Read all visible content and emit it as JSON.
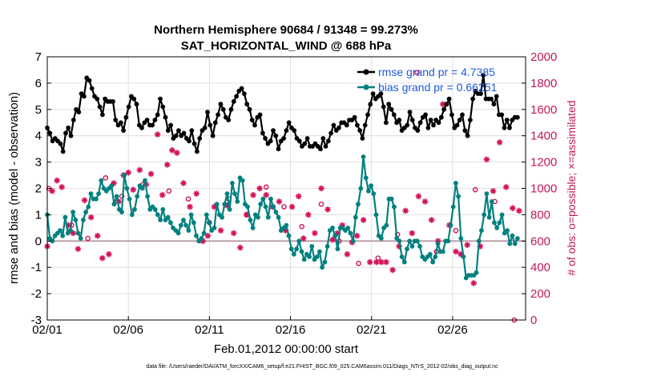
{
  "chart_data": {
    "type": "line",
    "title": "Northern Hemisphere 90684 / 91348 = 99.273%",
    "subtitle": "SAT_HORIZONTAL_WIND @ 688 hPa",
    "xlabel": "Feb.01,2012 00:00:00 start",
    "ylabel": "rmse and bias (model - observation)",
    "y2label": "# of obs: o=possible; ×=assimilated",
    "ylim": [
      -3,
      7
    ],
    "y2lim": [
      0,
      2000
    ],
    "xlim": [
      0,
      29.5
    ],
    "x_ticks": [
      0,
      5,
      10,
      15,
      20,
      25
    ],
    "x_tick_labels": [
      "02/01",
      "02/06",
      "02/11",
      "02/16",
      "02/21",
      "02/26"
    ],
    "y_ticks": [
      -3,
      -2,
      -1,
      0,
      1,
      2,
      3,
      4,
      5,
      6,
      7
    ],
    "y2_ticks": [
      0,
      200,
      400,
      600,
      800,
      1000,
      1200,
      1400,
      1600,
      1800,
      2000
    ],
    "grid": true,
    "legend_position": "top-right",
    "footnote": "data file: /Users/raeder/DAI/ATM_forcXX/CAM6_setup/f.e21.FHIST_BGC.f09_025.CAM6assim.011/Diags_NTrS_2012-02/obs_diag_output.nc",
    "colors": {
      "rmse": "#000000",
      "bias": "#00807f",
      "obs": "#d41159",
      "zero_line": "#b89aa5",
      "legend_text": "#1e5adc",
      "right_axis": "#c2185b"
    },
    "series": [
      {
        "name": "rmse grand pr = 4.7385",
        "values": [
          4.3,
          4.1,
          3.8,
          3.9,
          3.8,
          3.7,
          3.4,
          4.1,
          4.3,
          4.0,
          4.6,
          5.0,
          4.9,
          5.6,
          5.5,
          6.2,
          6.1,
          5.8,
          5.5,
          5.4,
          5.1,
          4.8,
          5.4,
          5.3,
          5.3,
          5.3,
          4.6,
          4.4,
          4.5,
          4.2,
          4.7,
          5.1,
          5.5,
          5.4,
          5.2,
          4.4,
          4.3,
          4.5,
          4.6,
          4.4,
          4.4,
          4.6,
          4.8,
          5.4,
          5.1,
          4.7,
          4.2,
          4.4,
          3.9,
          4.0,
          4.2,
          4.0,
          4.1,
          3.9,
          3.8,
          4.2,
          3.7,
          3.4,
          3.9,
          4.2,
          4.3,
          4.9,
          4.4,
          4.0,
          4.5,
          4.8,
          5.2,
          5.0,
          4.7,
          4.6,
          5.0,
          5.3,
          5.5,
          5.7,
          5.8,
          5.6,
          5.2,
          5.0,
          4.6,
          4.4,
          4.7,
          4.8,
          4.1,
          3.9,
          3.7,
          3.8,
          4.2,
          4.0,
          3.5,
          3.8,
          3.9,
          4.2,
          4.5,
          4.3,
          4.2,
          3.9,
          3.8,
          3.6,
          3.7,
          3.9,
          3.6,
          3.6,
          3.7,
          3.6,
          3.5,
          3.9,
          3.6,
          3.8,
          4.1,
          4.4,
          4.2,
          4.3,
          4.5,
          4.5,
          4.4,
          4.6,
          4.6,
          4.7,
          4.4,
          4.2,
          3.9,
          4.4,
          4.8,
          5.2,
          5.6,
          5.4,
          5.5,
          5.6,
          5.1,
          4.5,
          5.2,
          5.0,
          4.8,
          4.5,
          4.6,
          4.2,
          4.3,
          4.4,
          4.9,
          4.6,
          4.3,
          4.2,
          4.5,
          4.7,
          4.8,
          4.3,
          4.6,
          4.4,
          4.6,
          4.5,
          4.7,
          5.0,
          5.2,
          5.4,
          4.8,
          4.3,
          4.4,
          4.6,
          4.8,
          4.2,
          4.0,
          4.6,
          5.4,
          5.7,
          5.6,
          5.6,
          6.3,
          5.4,
          5.4,
          5.4,
          5.2,
          5.5,
          4.8,
          4.8,
          4.3,
          4.6,
          4.3,
          4.6,
          4.7,
          4.7
        ],
        "color": "#000000"
      },
      {
        "name": "bias grand pr = 0.66251",
        "values": [
          1.0,
          0.1,
          0.0,
          0.2,
          0.3,
          0.4,
          0.2,
          0.9,
          0.3,
          0.4,
          1.1,
          0.8,
          0.3,
          0.1,
          0.8,
          1.1,
          1.3,
          1.8,
          1.6,
          1.6,
          1.8,
          2.3,
          2.0,
          1.9,
          2.0,
          2.1,
          1.4,
          1.7,
          1.2,
          1.1,
          2.5,
          2.0,
          1.6,
          1.0,
          1.2,
          1.7,
          2.1,
          2.0,
          2.3,
          1.7,
          1.2,
          1.3,
          1.2,
          1.0,
          0.8,
          1.2,
          0.8,
          0.9,
          0.7,
          0.5,
          0.4,
          0.3,
          0.6,
          0.8,
          0.6,
          0.4,
          1.0,
          0.7,
          0.2,
          0.0,
          0.1,
          0.3,
          1.0,
          0.7,
          0.4,
          0.5,
          1.4,
          1.0,
          0.9,
          1.4,
          1.8,
          1.2,
          2.2,
          1.8,
          1.5,
          2.4,
          2.3,
          1.4,
          1.3,
          0.8,
          0.5,
          1.0,
          0.9,
          1.4,
          1.6,
          1.3,
          0.9,
          1.6,
          1.3,
          1.1,
          0.9,
          0.4,
          0.5,
          0.6,
          0.2,
          -0.3,
          -0.5,
          -0.3,
          0.0,
          -0.4,
          -0.7,
          -0.5,
          -0.6,
          -0.2,
          -0.7,
          -0.6,
          -0.4,
          -1.0,
          -0.8,
          -0.2,
          0.4,
          0.5,
          0.2,
          -0.3,
          0.5,
          0.5,
          0.4,
          0.5,
          0.3,
          0.0,
          0.9,
          1.4,
          2.0,
          3.2,
          2.4,
          1.9,
          2.1,
          1.8,
          1.0,
          0.2,
          0.1,
          0.5,
          0.6,
          1.6,
          1.6,
          1.3,
          0.1,
          0.0,
          -0.6,
          -0.8,
          -0.3,
          0.0,
          -0.2,
          0.0,
          0.0,
          -0.2,
          -0.6,
          -0.7,
          -0.6,
          -0.5,
          -0.8,
          -0.6,
          -0.1,
          -0.4,
          -0.4,
          0.0,
          0.0,
          0.6,
          1.3,
          2.2,
          1.7,
          0.1,
          -0.6,
          -1.4,
          -1.3,
          -1.3,
          -1.3,
          -1.2,
          0.0,
          0.4,
          1.0,
          1.8,
          0.9,
          1.5,
          0.7,
          0.5,
          0.7,
          1.0,
          0.3,
          0.4,
          -0.1,
          0.2,
          -0.1,
          0.1
        ],
        "color": "#00807f"
      },
      {
        "name": "obs assimilated (×, right axis)",
        "x": [
          0.0,
          0.3,
          0.6,
          0.9,
          1.3,
          1.6,
          1.9,
          2.3,
          2.7,
          3.1,
          3.4,
          3.8,
          4.1,
          4.4,
          4.7,
          5.0,
          5.3,
          5.7,
          6.1,
          6.4,
          6.8,
          7.1,
          7.4,
          7.7,
          8.0,
          8.4,
          8.8,
          9.2,
          9.6,
          9.9,
          10.3,
          10.7,
          11.1,
          11.5,
          11.9,
          12.3,
          12.7,
          13.1,
          13.5,
          13.9,
          14.3,
          14.7,
          15.1,
          15.5,
          15.8,
          16.1,
          16.5,
          16.9,
          17.3,
          17.6,
          17.9,
          18.2,
          18.5,
          18.8,
          19.1,
          19.5,
          19.9,
          20.3,
          20.6,
          20.9,
          21.3,
          21.7,
          22.1,
          22.5,
          22.9,
          23.3,
          23.7,
          24.1,
          24.4,
          24.8,
          25.2,
          25.5,
          25.9,
          26.3,
          26.7,
          27.1,
          27.5,
          27.9,
          28.3,
          28.7,
          29.1
        ],
        "values": [
          560,
          980,
          1060,
          1010,
          720,
          660,
          540,
          910,
          780,
          640,
          470,
          500,
          1040,
          900,
          1100,
          1120,
          990,
          1140,
          1030,
          1110,
          1410,
          950,
          1180,
          1290,
          1270,
          1040,
          860,
          960,
          600,
          640,
          860,
          680,
          870,
          660,
          550,
          800,
          950,
          1000,
          950,
          860,
          900,
          680,
          860,
          940,
          620,
          800,
          660,
          1000,
          840,
          610,
          660,
          720,
          500,
          590,
          640,
          760,
          440,
          440,
          440,
          440,
          380,
          560,
          830,
          660,
          940,
          900,
          760,
          600,
          1640,
          720,
          520,
          500,
          570,
          280,
          560,
          1220,
          980,
          1350,
          1010,
          850,
          830
        ]
      },
      {
        "name": "obs possible (o, right axis)",
        "x": [
          0.1,
          1.5,
          2.5,
          3.6,
          4.6,
          5.9,
          7.5,
          8.7,
          10.0,
          11.2,
          12.3,
          13.5,
          14.6,
          15.7,
          16.9,
          18.0,
          19.2,
          20.4,
          21.6,
          22.8,
          24.0,
          25.2,
          26.4,
          27.6,
          28.8
        ],
        "values": [
          1000,
          720,
          620,
          1080,
          940,
          1030,
          980,
          920,
          740,
          920,
          800,
          1010,
          860,
          710,
          880,
          600,
          430,
          470,
          650,
          1880,
          520,
          680,
          990,
          900,
          0
        ]
      }
    ]
  }
}
